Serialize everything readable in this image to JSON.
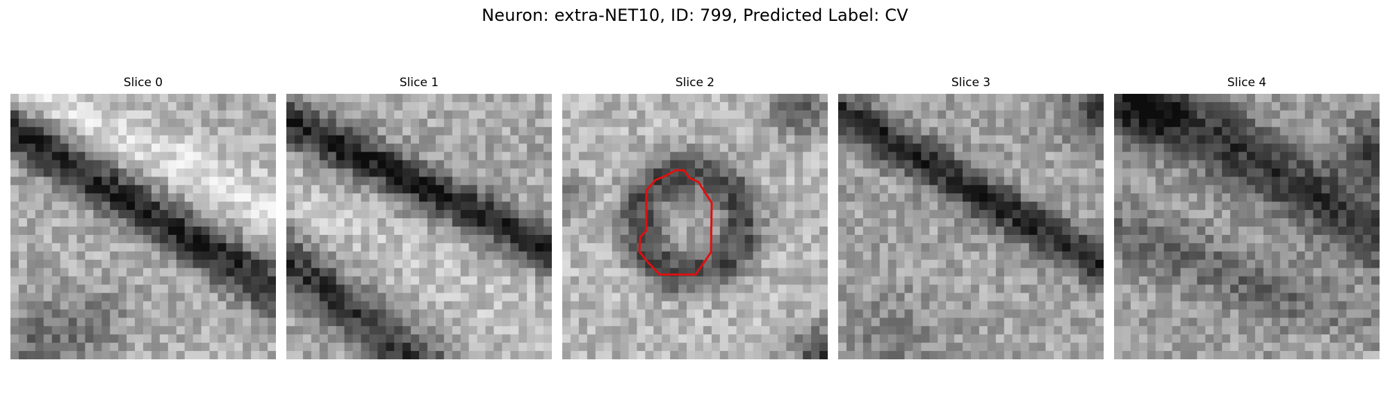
{
  "figure": {
    "title": "Neuron: extra-NET10, ID: 799, Predicted Label: CV"
  },
  "panels": [
    {
      "title": "Slice 0",
      "has_contour": false
    },
    {
      "title": "Slice 1",
      "has_contour": false
    },
    {
      "title": "Slice 2",
      "has_contour": true
    },
    {
      "title": "Slice 3",
      "has_contour": false
    },
    {
      "title": "Slice 4",
      "has_contour": false
    }
  ],
  "colors": {
    "contour": "#e01010",
    "background": "#ffffff"
  }
}
